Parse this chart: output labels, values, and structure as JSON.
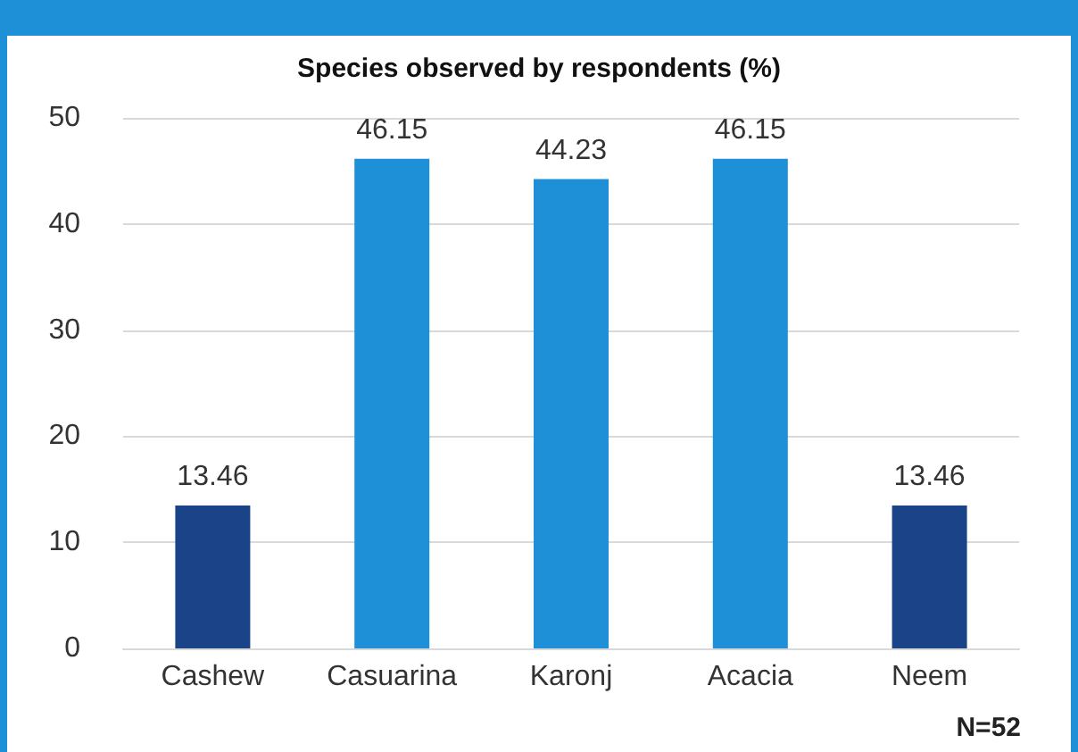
{
  "chart_data": {
    "type": "bar",
    "title": "Species observed by respondents (%)",
    "categories": [
      "Cashew",
      "Casuarina",
      "Karonj",
      "Acacia",
      "Neem"
    ],
    "values": [
      13.46,
      46.15,
      44.23,
      46.15,
      13.46
    ],
    "colors": [
      "#1b4488",
      "#1e90d8",
      "#1e90d8",
      "#1e90d8",
      "#1b4488"
    ],
    "ylim": [
      0,
      50
    ],
    "yticks": [
      0,
      10,
      20,
      30,
      40,
      50
    ],
    "grid": "y",
    "data_labels": true,
    "annotations": [
      "N=52"
    ]
  }
}
